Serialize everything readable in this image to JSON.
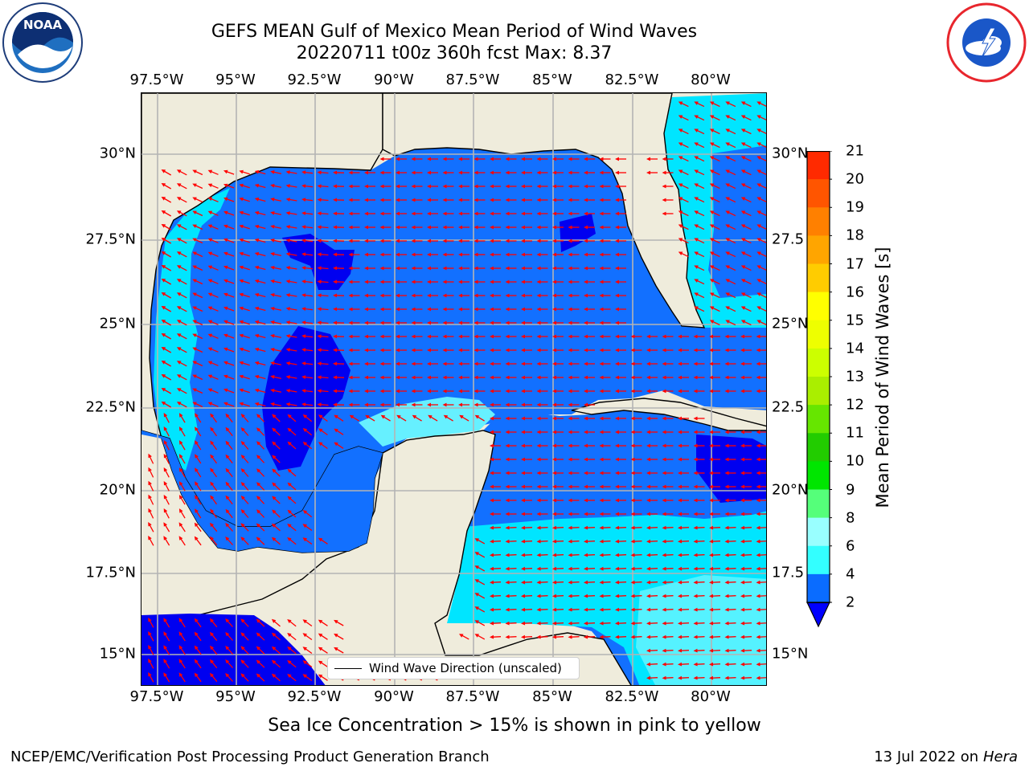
{
  "header": {
    "title_line1": "GEFS MEAN Gulf of Mexico Mean Period of Wind Waves",
    "title_line2": "20220711 t00z 360h fcst   Max: 8.37"
  },
  "map": {
    "lon_labels": [
      "97.5°W",
      "95°W",
      "92.5°W",
      "90°W",
      "87.5°W",
      "85°W",
      "82.5°W",
      "80°W"
    ],
    "lat_labels": [
      "30°N",
      "27.5°N",
      "25°N",
      "22.5°N",
      "20°N",
      "17.5°N",
      "15°N"
    ],
    "lat_labels_right": [
      "30°N",
      "27.5",
      "25°N",
      "22.5",
      "20°N",
      "17.5",
      "15°N"
    ],
    "extent": {
      "lon_min": -98.0,
      "lon_max": -78.2,
      "lat_min": 14.0,
      "lat_max": 31.8
    },
    "land_color": "#efecdc",
    "grid": true,
    "legend_text": "Wind Wave Direction (unscaled)",
    "arrow_color": "#ff0000"
  },
  "colorbar": {
    "label": "Mean Period of Wind Waves [s]",
    "ticks": [
      "2",
      "4",
      "6",
      "8",
      "9",
      "10",
      "11",
      "12",
      "13",
      "14",
      "15",
      "16",
      "17",
      "18",
      "19",
      "20",
      "21"
    ],
    "colors": [
      "#0a6cff",
      "#00e5ff",
      "#33ffff",
      "#99ffff",
      "#55ff7a",
      "#00e600",
      "#22cc00",
      "#66e600",
      "#aaee00",
      "#ccff00",
      "#eeff00",
      "#ffff00",
      "#ffcc00",
      "#ffa500",
      "#ff8000",
      "#ff5500",
      "#ff2a00",
      "#ff0000"
    ],
    "under_color": "#0000ff"
  },
  "footer": {
    "caption": "Sea Ice Concentration > 15% is shown in pink to yellow",
    "left": "NCEP/EMC/Verification Post Processing Product Generation Branch",
    "right_prefix": "13 Jul 2022 on ",
    "right_host": "Hera"
  },
  "logos": {
    "left": "noaa-logo",
    "right": "nws-logo"
  }
}
